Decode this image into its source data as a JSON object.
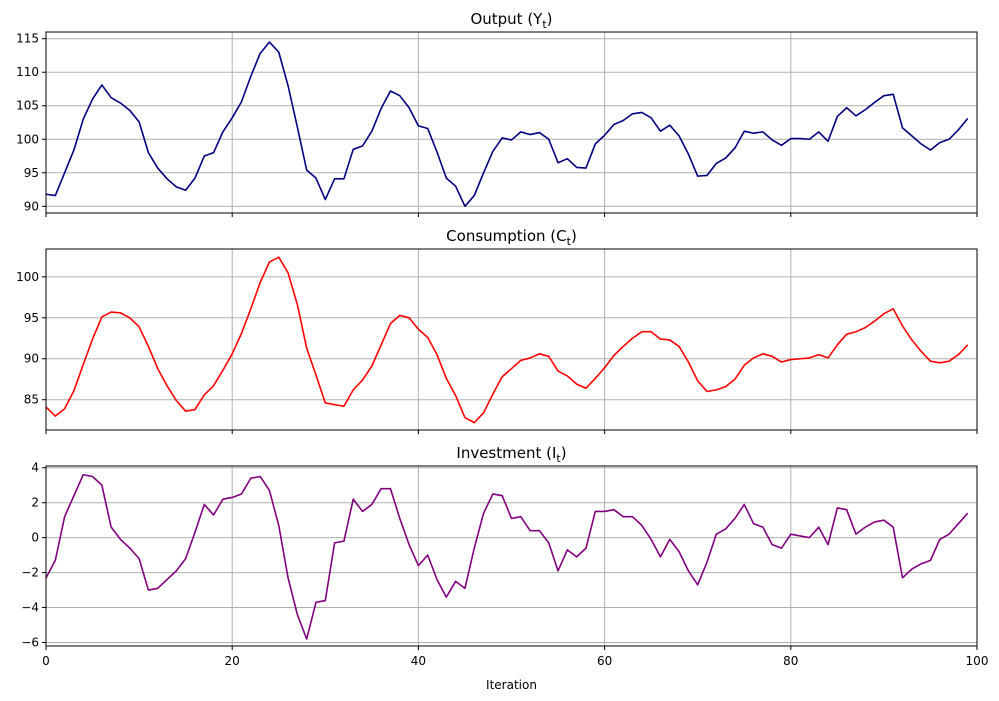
{
  "chart_data": [
    {
      "type": "line",
      "title": "Output (Y",
      "title_sub": "t",
      "title_close": ")",
      "xlim": [
        0,
        100
      ],
      "ylim": [
        89,
        116
      ],
      "yticks": [
        90,
        95,
        100,
        105,
        110,
        115
      ],
      "xticks": [
        0,
        20,
        40,
        60,
        80,
        100
      ],
      "show_x_tick_labels": false,
      "grid": true,
      "color": "#000080",
      "values": [
        91.8,
        91.6,
        95.0,
        98.4,
        103.0,
        106.0,
        108.1,
        106.2,
        105.4,
        104.3,
        102.6,
        98.0,
        95.7,
        94.1,
        92.9,
        92.4,
        94.2,
        97.5,
        98.0,
        101.1,
        103.2,
        105.6,
        109.4,
        112.8,
        114.5,
        113.0,
        108.0,
        101.8,
        95.4,
        94.2,
        91.0,
        94.1,
        94.1,
        98.5,
        99.0,
        101.2,
        104.6,
        107.2,
        106.5,
        104.7,
        102.0,
        101.6,
        98.1,
        94.2,
        93.0,
        90.0,
        91.6,
        95.0,
        98.2,
        100.2,
        99.9,
        101.1,
        100.7,
        101.0,
        100.0,
        96.5,
        97.1,
        95.8,
        95.7,
        99.3,
        100.6,
        102.2,
        102.8,
        103.8,
        104.0,
        103.2,
        101.2,
        102.1,
        100.5,
        97.8,
        94.5,
        94.6,
        96.4,
        97.2,
        98.7,
        101.2,
        100.9,
        101.1,
        99.9,
        99.1,
        100.1,
        100.1,
        100.0,
        101.1,
        99.7,
        103.4,
        104.7,
        103.5,
        104.4,
        105.5,
        106.5,
        106.7,
        101.7,
        100.5,
        99.3,
        98.4,
        99.5,
        100.0,
        101.4,
        103.1
      ]
    },
    {
      "type": "line",
      "title": "Consumption (C",
      "title_sub": "t",
      "title_close": ")",
      "xlim": [
        0,
        100
      ],
      "ylim": [
        81.3,
        103.4
      ],
      "yticks": [
        85,
        90,
        95,
        100
      ],
      "xticks": [
        0,
        20,
        40,
        60,
        80,
        100
      ],
      "show_x_tick_labels": false,
      "grid": true,
      "color": "#ff0000",
      "values": [
        84.1,
        83.0,
        83.9,
        86.1,
        89.3,
        92.4,
        95.1,
        95.7,
        95.6,
        95.0,
        93.9,
        91.5,
        88.8,
        86.7,
        84.9,
        83.6,
        83.8,
        85.6,
        86.7,
        88.6,
        90.6,
        93.1,
        96.1,
        99.3,
        101.8,
        102.4,
        100.5,
        96.6,
        91.3,
        88.0,
        84.6,
        84.4,
        84.2,
        86.2,
        87.4,
        89.1,
        91.7,
        94.3,
        95.3,
        95.0,
        93.6,
        92.6,
        90.5,
        87.6,
        85.5,
        82.8,
        82.2,
        83.4,
        85.7,
        87.8,
        88.8,
        89.8,
        90.1,
        90.6,
        90.3,
        88.5,
        87.9,
        86.9,
        86.4,
        87.6,
        88.9,
        90.4,
        91.5,
        92.5,
        93.3,
        93.3,
        92.4,
        92.3,
        91.5,
        89.6,
        87.3,
        86.0,
        86.2,
        86.6,
        87.5,
        89.2,
        90.1,
        90.6,
        90.3,
        89.6,
        89.9,
        90.0,
        90.1,
        90.5,
        90.1,
        91.7,
        93.0,
        93.3,
        93.8,
        94.6,
        95.5,
        96.1,
        94.0,
        92.3,
        90.9,
        89.7,
        89.5,
        89.7,
        90.5,
        91.7
      ]
    },
    {
      "type": "line",
      "title": "Investment (I",
      "title_sub": "t",
      "title_close": ")",
      "xlim": [
        0,
        100
      ],
      "ylim": [
        -6.2,
        4.1
      ],
      "yticks": [
        -6,
        -4,
        -2,
        0,
        2,
        4
      ],
      "xticks": [
        0,
        20,
        40,
        60,
        80,
        100
      ],
      "show_x_tick_labels": true,
      "xlabel": "Iteration",
      "grid": true,
      "color": "#800080",
      "values": [
        -2.3,
        -1.3,
        1.2,
        2.4,
        3.6,
        3.5,
        3.0,
        0.6,
        -0.1,
        -0.6,
        -1.2,
        -3.0,
        -2.9,
        -2.4,
        -1.9,
        -1.2,
        0.3,
        1.9,
        1.3,
        2.2,
        2.3,
        2.5,
        3.4,
        3.5,
        2.7,
        0.7,
        -2.3,
        -4.4,
        -5.8,
        -3.7,
        -3.6,
        -0.3,
        -0.2,
        2.2,
        1.5,
        1.9,
        2.8,
        2.8,
        1.1,
        -0.4,
        -1.6,
        -1.0,
        -2.4,
        -3.4,
        -2.5,
        -2.9,
        -0.6,
        1.4,
        2.5,
        2.4,
        1.1,
        1.2,
        0.4,
        0.4,
        -0.3,
        -1.9,
        -0.7,
        -1.1,
        -0.6,
        1.5,
        1.5,
        1.6,
        1.2,
        1.2,
        0.7,
        -0.1,
        -1.1,
        -0.1,
        -0.8,
        -1.9,
        -2.7,
        -1.4,
        0.2,
        0.5,
        1.1,
        1.9,
        0.8,
        0.6,
        -0.4,
        -0.6,
        0.2,
        0.1,
        0.0,
        0.6,
        -0.4,
        1.7,
        1.6,
        0.2,
        0.6,
        0.9,
        1.0,
        0.6,
        -2.3,
        -1.8,
        -1.5,
        -1.3,
        -0.1,
        0.2,
        0.8,
        1.4
      ]
    }
  ]
}
